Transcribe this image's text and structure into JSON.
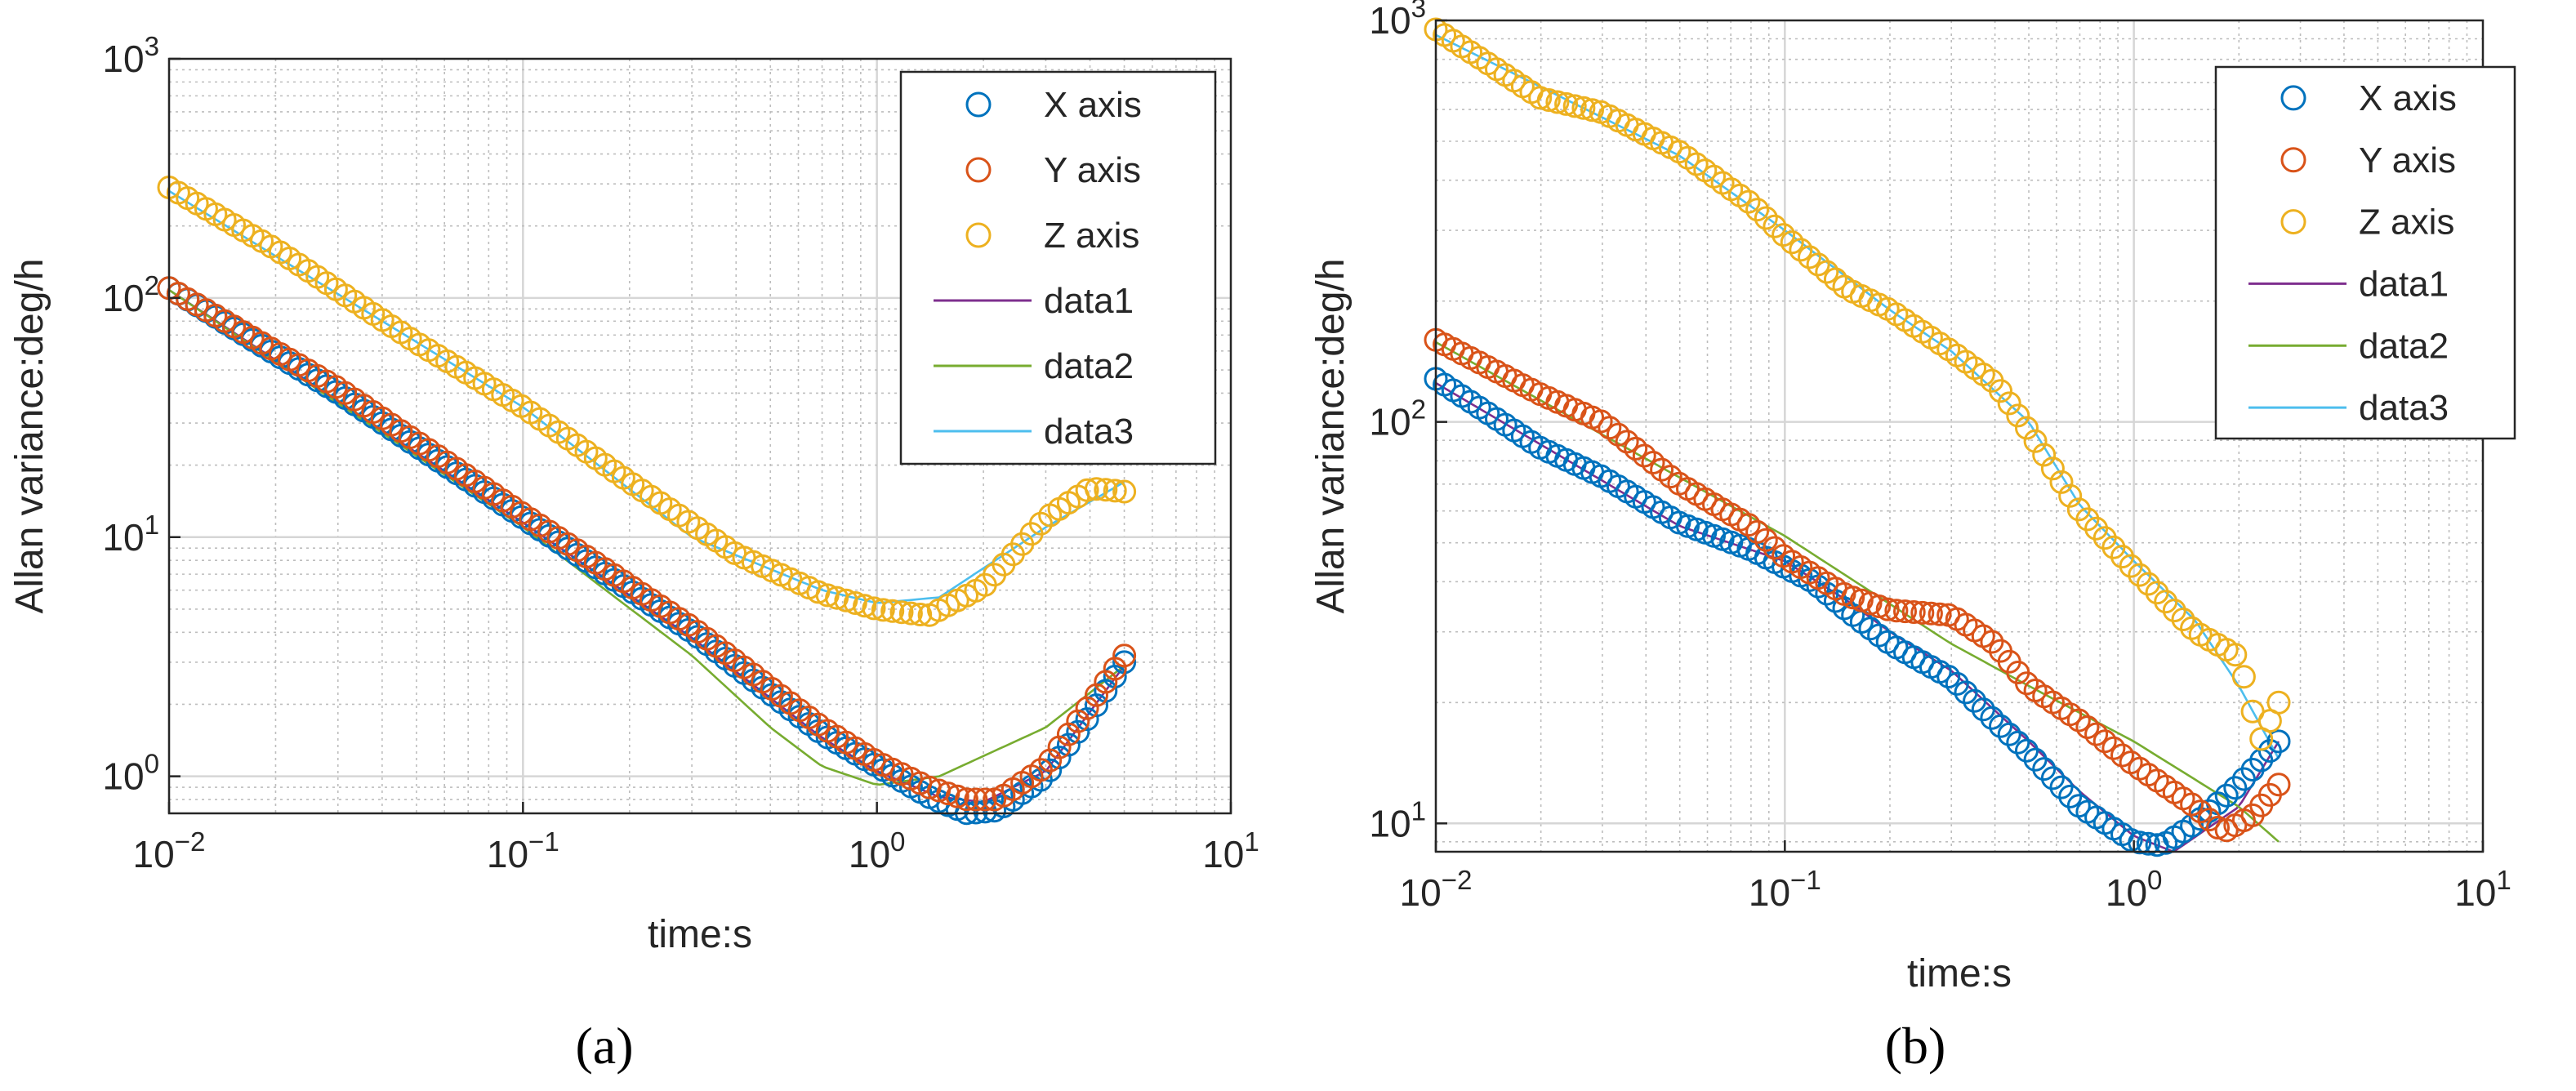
{
  "figure": {
    "panel_a_label": "(a)",
    "panel_b_label": "(b)"
  },
  "chart_data": [
    {
      "panel": "a",
      "type": "scatter",
      "title": "",
      "xlabel": "time:s",
      "ylabel": "Allan variance:deg/h",
      "xscale": "log",
      "yscale": "log",
      "xlim": [
        0.01,
        10
      ],
      "ylim": [
        0.7,
        1000
      ],
      "grid": true,
      "legend_position": "top-right",
      "x_ticks": [
        {
          "value": 0.01,
          "base": "10",
          "exp": "−2"
        },
        {
          "value": 0.1,
          "base": "10",
          "exp": "−1"
        },
        {
          "value": 1,
          "base": "10",
          "exp": "0"
        },
        {
          "value": 10,
          "base": "10",
          "exp": "1"
        }
      ],
      "y_ticks": [
        {
          "value": 1,
          "base": "10",
          "exp": "0"
        },
        {
          "value": 10,
          "base": "10",
          "exp": "1"
        },
        {
          "value": 100,
          "base": "10",
          "exp": "2"
        },
        {
          "value": 1000,
          "base": "10",
          "exp": "3"
        }
      ],
      "scatter_series": [
        {
          "name": "X axis",
          "color": "#0072BD",
          "anchors": [
            [
              0.01,
              110
            ],
            [
              0.03,
              40
            ],
            [
              0.1,
              12
            ],
            [
              0.3,
              4
            ],
            [
              0.7,
              1.5
            ],
            [
              1.0,
              1.1
            ],
            [
              1.4,
              0.82
            ],
            [
              1.8,
              0.7
            ],
            [
              2.2,
              0.72
            ],
            [
              3.0,
              1.0
            ],
            [
              4.0,
              1.8
            ],
            [
              5.0,
              3.0
            ]
          ]
        },
        {
          "name": "Y axis",
          "color": "#D95319",
          "anchors": [
            [
              0.01,
              110
            ],
            [
              0.03,
              42
            ],
            [
              0.1,
              12.5
            ],
            [
              0.3,
              4.2
            ],
            [
              0.7,
              1.6
            ],
            [
              1.0,
              1.15
            ],
            [
              1.4,
              0.9
            ],
            [
              1.8,
              0.8
            ],
            [
              2.2,
              0.8
            ],
            [
              3.0,
              1.1
            ],
            [
              4.0,
              2.0
            ],
            [
              5.0,
              3.2
            ]
          ]
        },
        {
          "name": "Z axis",
          "color": "#EDB120",
          "anchors": [
            [
              0.01,
              290
            ],
            [
              0.02,
              160
            ],
            [
              0.05,
              65
            ],
            [
              0.1,
              35
            ],
            [
              0.2,
              17
            ],
            [
              0.4,
              8.5
            ],
            [
              0.7,
              5.8
            ],
            [
              1.0,
              5.0
            ],
            [
              1.4,
              4.7
            ],
            [
              2.0,
              6.2
            ],
            [
              3.0,
              12
            ],
            [
              4.0,
              16
            ],
            [
              5.0,
              15.5
            ]
          ]
        }
      ],
      "fit_series": [
        {
          "name": "data1",
          "color": "#7E2F8E",
          "anchors": [
            [
              0.01,
              108
            ],
            [
              0.1,
              11.5
            ],
            [
              0.3,
              3.8
            ],
            [
              0.7,
              1.45
            ],
            [
              1.0,
              1.05
            ],
            [
              1.5,
              0.82
            ],
            [
              2.0,
              0.78
            ],
            [
              3.0,
              1.05
            ],
            [
              5.0,
              2.9
            ]
          ]
        },
        {
          "name": "data2",
          "color": "#77AC30",
          "anchors": [
            [
              0.01,
              108
            ],
            [
              0.1,
              11
            ],
            [
              0.3,
              3.2
            ],
            [
              0.5,
              1.6
            ],
            [
              0.7,
              1.1
            ],
            [
              1.0,
              0.92
            ],
            [
              1.5,
              1.0
            ],
            [
              3.0,
              1.6
            ],
            [
              5.0,
              2.9
            ]
          ]
        },
        {
          "name": "data3",
          "color": "#4DBEEE",
          "anchors": [
            [
              0.01,
              280
            ],
            [
              0.1,
              35
            ],
            [
              0.3,
              10
            ],
            [
              0.7,
              6.0
            ],
            [
              1.0,
              5.3
            ],
            [
              1.5,
              5.6
            ],
            [
              3.0,
              11
            ],
            [
              5.0,
              17
            ]
          ]
        }
      ]
    },
    {
      "panel": "b",
      "type": "scatter",
      "title": "",
      "xlabel": "time:s",
      "ylabel": "Allan variance:deg/h",
      "xscale": "log",
      "yscale": "log",
      "xlim": [
        0.01,
        10
      ],
      "ylim": [
        8.5,
        1000
      ],
      "grid": true,
      "legend_position": "top-right",
      "x_ticks": [
        {
          "value": 0.01,
          "base": "10",
          "exp": "−2"
        },
        {
          "value": 0.1,
          "base": "10",
          "exp": "−1"
        },
        {
          "value": 1,
          "base": "10",
          "exp": "0"
        },
        {
          "value": 10,
          "base": "10",
          "exp": "1"
        }
      ],
      "y_ticks": [
        {
          "value": 10,
          "base": "10",
          "exp": "1"
        },
        {
          "value": 100,
          "base": "10",
          "exp": "2"
        },
        {
          "value": 1000,
          "base": "10",
          "exp": "3"
        }
      ],
      "scatter_series": [
        {
          "name": "X axis",
          "color": "#0072BD",
          "anchors": [
            [
              0.01,
              128
            ],
            [
              0.02,
              86
            ],
            [
              0.03,
              73
            ],
            [
              0.05,
              56
            ],
            [
              0.08,
              48
            ],
            [
              0.12,
              40
            ],
            [
              0.15,
              34
            ],
            [
              0.2,
              28
            ],
            [
              0.3,
              23
            ],
            [
              0.4,
              18
            ],
            [
              0.5,
              15
            ],
            [
              0.7,
              11
            ],
            [
              1.0,
              9
            ],
            [
              1.2,
              8.8
            ],
            [
              1.5,
              10
            ],
            [
              2.0,
              12.5
            ],
            [
              2.6,
              16
            ]
          ]
        },
        {
          "name": "Y axis",
          "color": "#D95319",
          "anchors": [
            [
              0.01,
              160
            ],
            [
              0.02,
              117
            ],
            [
              0.03,
              100
            ],
            [
              0.05,
              70
            ],
            [
              0.08,
              55
            ],
            [
              0.1,
              46
            ],
            [
              0.15,
              37
            ],
            [
              0.2,
              34
            ],
            [
              0.3,
              33
            ],
            [
              0.4,
              28
            ],
            [
              0.5,
              22
            ],
            [
              0.7,
              18
            ],
            [
              1.0,
              14
            ],
            [
              1.5,
              11
            ],
            [
              1.8,
              9.5
            ],
            [
              2.2,
              10.5
            ],
            [
              2.6,
              12.5
            ]
          ]
        },
        {
          "name": "Z axis",
          "color": "#EDB120",
          "anchors": [
            [
              0.01,
              950
            ],
            [
              0.02,
              640
            ],
            [
              0.03,
              590
            ],
            [
              0.05,
              470
            ],
            [
              0.08,
              350
            ],
            [
              0.1,
              290
            ],
            [
              0.15,
              215
            ],
            [
              0.2,
              190
            ],
            [
              0.3,
              150
            ],
            [
              0.4,
              125
            ],
            [
              0.5,
              95
            ],
            [
              0.7,
              60
            ],
            [
              1.0,
              43
            ],
            [
              1.5,
              30
            ],
            [
              2.0,
              26
            ],
            [
              2.3,
              16
            ],
            [
              2.6,
              20
            ]
          ]
        }
      ],
      "fit_series": [
        {
          "name": "data1",
          "color": "#7E2F8E",
          "anchors": [
            [
              0.01,
              125
            ],
            [
              0.05,
              55
            ],
            [
              0.1,
              45
            ],
            [
              0.15,
              36
            ],
            [
              0.2,
              30
            ],
            [
              0.3,
              24
            ],
            [
              0.5,
              16
            ],
            [
              0.7,
              12
            ],
            [
              1.0,
              9.3
            ],
            [
              1.3,
              8.5
            ],
            [
              2.0,
              11
            ],
            [
              2.6,
              16
            ]
          ]
        },
        {
          "name": "data2",
          "color": "#77AC30",
          "anchors": [
            [
              0.01,
              158
            ],
            [
              0.1,
              52
            ],
            [
              0.3,
              28
            ],
            [
              0.5,
              22
            ],
            [
              1.0,
              16
            ],
            [
              2.0,
              11
            ],
            [
              2.6,
              9
            ]
          ]
        },
        {
          "name": "data3",
          "color": "#4DBEEE",
          "anchors": [
            [
              0.01,
              920
            ],
            [
              0.05,
              460
            ],
            [
              0.1,
              300
            ],
            [
              0.2,
              190
            ],
            [
              0.3,
              150
            ],
            [
              0.5,
              100
            ],
            [
              0.7,
              62
            ],
            [
              1.0,
              45
            ],
            [
              1.5,
              32
            ],
            [
              2.0,
              22
            ],
            [
              2.6,
              14.5
            ]
          ]
        }
      ]
    }
  ]
}
